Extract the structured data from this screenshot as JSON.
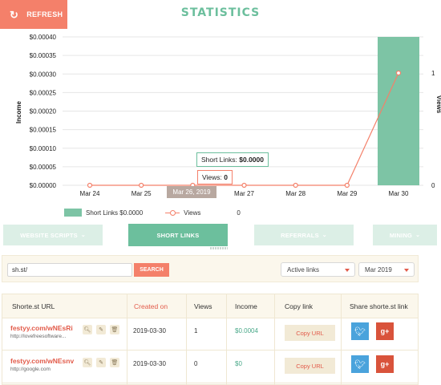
{
  "header": {
    "refresh_label": "REFRESH",
    "refresh_icon": "refresh-icon",
    "title": "STATISTICS"
  },
  "chart_data": {
    "type": "bar",
    "categories": [
      "Mar 24",
      "Mar 25",
      "Mar 26, 2019",
      "Mar 27",
      "Mar 28",
      "Mar 29",
      "Mar 30"
    ],
    "series": [
      {
        "name": "Short Links $0.0000",
        "type": "bar",
        "axis": "left",
        "color": "#7dc4a5",
        "values": [
          0,
          0,
          0,
          0,
          0,
          0,
          0.0004
        ]
      },
      {
        "name": "Views",
        "type": "line",
        "axis": "right",
        "color": "#f4806a",
        "values": [
          0,
          0,
          0,
          0,
          0,
          0,
          1
        ]
      }
    ],
    "ylabel": "Income",
    "y2label": "Views",
    "ylim": [
      0,
      0.0004
    ],
    "y2lim": [
      0,
      1
    ],
    "yticks": [
      "$0.00000",
      "$0.00005",
      "$0.00010",
      "$0.00015",
      "$0.00020",
      "$0.00025",
      "$0.00030",
      "$0.00035",
      "$0.00040"
    ],
    "y2ticks": [
      "0",
      "1"
    ],
    "grid": true,
    "legend_position": "bottom-left",
    "legend_extra": "0",
    "tooltip": {
      "links_label": "Short Links:",
      "links_value": "$0.0000",
      "views_label": "Views:",
      "views_value": "0"
    },
    "highlighted_category": "Mar 26, 2019"
  },
  "tabs": [
    {
      "label": "WEBSITE SCRIPTS",
      "active": false,
      "dropdown": true
    },
    {
      "label": "SHORT LINKS",
      "active": true,
      "dropdown": false
    },
    {
      "label": "REFERRALS",
      "active": false,
      "dropdown": true
    },
    {
      "label": "MINING",
      "active": false,
      "dropdown": true
    }
  ],
  "filters": {
    "search_value": "sh.st/",
    "search_button": "SEARCH",
    "links_select": "Active links",
    "month_select": "Mar 2019"
  },
  "table": {
    "headers": [
      "Shorte.st URL",
      "Created on",
      "Views",
      "Income",
      "Copy link",
      "Share shorte.st link"
    ],
    "sorted_column": "Created on",
    "rows": [
      {
        "short_url": "festyy.com/wNEsRi",
        "original_url": "http://lovefreesoftware...",
        "created_on": "2019-03-30",
        "views": "1",
        "income": "$0.0004",
        "copy_label": "Copy URL"
      },
      {
        "short_url": "festyy.com/wNEsnv",
        "original_url": "http://google.com",
        "created_on": "2019-03-30",
        "views": "0",
        "income": "$0",
        "copy_label": "Copy URL"
      }
    ]
  },
  "colors": {
    "accent_green": "#6cbf9d",
    "bar_green": "#7dc4a5",
    "accent_orange": "#f4806a",
    "link_red": "#e25b4a",
    "twitter_blue": "#4aa3dc",
    "gplus_red": "#d9533b"
  }
}
